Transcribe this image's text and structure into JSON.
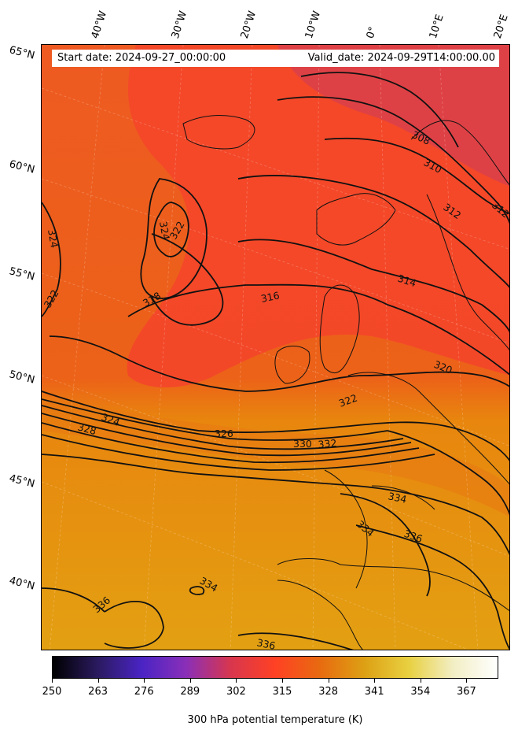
{
  "header": {
    "start_date": "Start date: 2024-09-27_00:00:00",
    "valid_date": "Valid_date: 2024-09-29T14:00:00.00"
  },
  "latitude_labels": [
    "65°N",
    "60°N",
    "55°N",
    "50°N",
    "45°N",
    "40°N"
  ],
  "longitude_labels": [
    "40°W",
    "30°W",
    "20°W",
    "10°W",
    "0°",
    "10°E",
    "20°E"
  ],
  "contour_labels": [
    "308",
    "310",
    "312",
    "312",
    "314",
    "316",
    "318",
    "320",
    "322",
    "322",
    "322",
    "324",
    "324",
    "324",
    "326",
    "328",
    "330",
    "332",
    "334",
    "334",
    "334",
    "336",
    "336",
    "336"
  ],
  "colorbar": {
    "title": "300 hPa potential temperature (K)",
    "min": 250,
    "max": 376,
    "ticks": [
      "250",
      "263",
      "276",
      "289",
      "302",
      "315",
      "328",
      "341",
      "354",
      "367"
    ],
    "colors": [
      "#000000",
      "#2a1a5e",
      "#4a24c4",
      "#8a2fb8",
      "#d8364e",
      "#ff4124",
      "#e86a10",
      "#dda014",
      "#e8d040",
      "#f2eec4",
      "#ffffff"
    ]
  },
  "map_colors": {
    "cold_north": "#de4045",
    "mid_red": "#f5482a",
    "orange": "#ef6a1a",
    "amber": "#e69410",
    "warm_south": "#e0a012"
  }
}
